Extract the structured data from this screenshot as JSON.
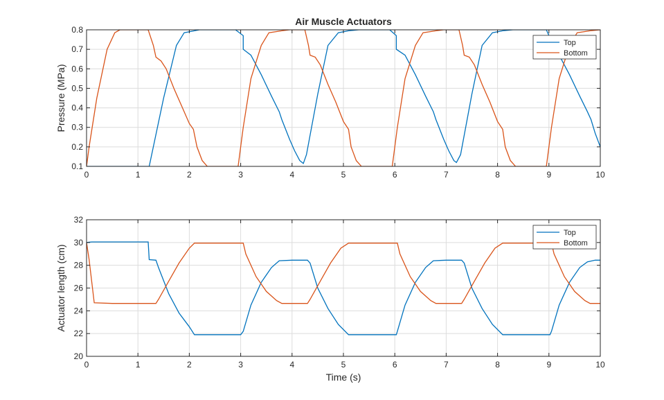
{
  "chart_data": [
    {
      "type": "line",
      "title": "Air Muscle Actuators",
      "xlabel": "",
      "ylabel": "Pressure (MPa)",
      "xlim": [
        0,
        10
      ],
      "ylim": [
        0.1,
        0.8
      ],
      "xticks": [
        "0",
        "1",
        "2",
        "3",
        "4",
        "5",
        "6",
        "7",
        "8",
        "9",
        "10"
      ],
      "yticks": [
        "0.1",
        "0.2",
        "0.3",
        "0.4",
        "0.5",
        "0.6",
        "0.7",
        "0.8"
      ],
      "grid": true,
      "legend": "top-right",
      "series": [
        {
          "name": "Top",
          "color": "#0072BD",
          "points": [
            [
              0,
              0.1
            ],
            [
              1.2,
              0.1
            ],
            [
              1.22,
              0.1
            ],
            [
              1.5,
              0.45
            ],
            [
              1.75,
              0.72
            ],
            [
              1.9,
              0.785
            ],
            [
              2.1,
              0.795
            ],
            [
              2.2,
              0.8
            ],
            [
              2.9,
              0.8
            ],
            [
              3.05,
              0.77
            ],
            [
              3.05,
              0.7
            ],
            [
              3.2,
              0.67
            ],
            [
              3.4,
              0.57
            ],
            [
              3.6,
              0.46
            ],
            [
              3.75,
              0.38
            ],
            [
              3.8,
              0.34
            ],
            [
              3.95,
              0.24
            ],
            [
              4.05,
              0.18
            ],
            [
              4.15,
              0.13
            ],
            [
              4.22,
              0.115
            ],
            [
              4.28,
              0.16
            ],
            [
              4.5,
              0.47
            ],
            [
              4.7,
              0.72
            ],
            [
              4.9,
              0.785
            ],
            [
              5.1,
              0.795
            ],
            [
              5.3,
              0.8
            ],
            [
              5.9,
              0.8
            ],
            [
              6.03,
              0.77
            ],
            [
              6.03,
              0.7
            ],
            [
              6.2,
              0.67
            ],
            [
              6.4,
              0.57
            ],
            [
              6.6,
              0.46
            ],
            [
              6.75,
              0.38
            ],
            [
              6.8,
              0.34
            ],
            [
              6.95,
              0.24
            ],
            [
              7.05,
              0.18
            ],
            [
              7.15,
              0.13
            ],
            [
              7.2,
              0.12
            ],
            [
              7.28,
              0.16
            ],
            [
              7.5,
              0.47
            ],
            [
              7.7,
              0.72
            ],
            [
              7.9,
              0.785
            ],
            [
              8.1,
              0.795
            ],
            [
              8.3,
              0.8
            ],
            [
              8.95,
              0.8
            ],
            [
              9.0,
              0.77
            ],
            [
              9.03,
              0.75
            ],
            [
              9.2,
              0.67
            ],
            [
              9.4,
              0.57
            ],
            [
              9.6,
              0.46
            ],
            [
              9.75,
              0.38
            ],
            [
              9.82,
              0.34
            ],
            [
              9.9,
              0.27
            ],
            [
              10,
              0.2
            ]
          ]
        },
        {
          "name": "Bottom",
          "color": "#D95319",
          "points": [
            [
              0,
              0.1
            ],
            [
              0.05,
              0.2
            ],
            [
              0.2,
              0.45
            ],
            [
              0.4,
              0.7
            ],
            [
              0.55,
              0.785
            ],
            [
              0.65,
              0.8
            ],
            [
              1.2,
              0.8
            ],
            [
              1.3,
              0.72
            ],
            [
              1.35,
              0.66
            ],
            [
              1.45,
              0.64
            ],
            [
              1.55,
              0.6
            ],
            [
              1.7,
              0.5
            ],
            [
              1.85,
              0.41
            ],
            [
              2.0,
              0.32
            ],
            [
              2.08,
              0.29
            ],
            [
              2.15,
              0.2
            ],
            [
              2.25,
              0.13
            ],
            [
              2.35,
              0.1
            ],
            [
              2.95,
              0.1
            ],
            [
              3.05,
              0.3
            ],
            [
              3.2,
              0.55
            ],
            [
              3.4,
              0.72
            ],
            [
              3.55,
              0.785
            ],
            [
              3.8,
              0.795
            ],
            [
              3.95,
              0.8
            ],
            [
              4.25,
              0.8
            ],
            [
              4.32,
              0.72
            ],
            [
              4.35,
              0.67
            ],
            [
              4.45,
              0.66
            ],
            [
              4.55,
              0.62
            ],
            [
              4.7,
              0.52
            ],
            [
              4.85,
              0.43
            ],
            [
              5.0,
              0.33
            ],
            [
              5.1,
              0.29
            ],
            [
              5.15,
              0.2
            ],
            [
              5.25,
              0.13
            ],
            [
              5.35,
              0.1
            ],
            [
              5.95,
              0.1
            ],
            [
              6.05,
              0.3
            ],
            [
              6.2,
              0.55
            ],
            [
              6.4,
              0.72
            ],
            [
              6.55,
              0.785
            ],
            [
              6.8,
              0.795
            ],
            [
              6.95,
              0.8
            ],
            [
              7.25,
              0.8
            ],
            [
              7.32,
              0.72
            ],
            [
              7.35,
              0.67
            ],
            [
              7.45,
              0.66
            ],
            [
              7.55,
              0.62
            ],
            [
              7.7,
              0.52
            ],
            [
              7.85,
              0.43
            ],
            [
              8.0,
              0.33
            ],
            [
              8.1,
              0.29
            ],
            [
              8.15,
              0.2
            ],
            [
              8.25,
              0.13
            ],
            [
              8.35,
              0.1
            ],
            [
              8.95,
              0.1
            ],
            [
              9.05,
              0.3
            ],
            [
              9.2,
              0.55
            ],
            [
              9.4,
              0.72
            ],
            [
              9.55,
              0.785
            ],
            [
              9.8,
              0.795
            ],
            [
              10,
              0.8
            ]
          ]
        }
      ]
    },
    {
      "type": "line",
      "title": "",
      "xlabel": "Time (s)",
      "ylabel": "Actuator length (cm)",
      "xlim": [
        0,
        10
      ],
      "ylim": [
        20,
        32
      ],
      "xticks": [
        "0",
        "1",
        "2",
        "3",
        "4",
        "5",
        "6",
        "7",
        "8",
        "9",
        "10"
      ],
      "yticks": [
        "20",
        "22",
        "24",
        "26",
        "28",
        "30",
        "32"
      ],
      "grid": true,
      "legend": "top-right",
      "series": [
        {
          "name": "Top",
          "color": "#0072BD",
          "points": [
            [
              0,
              30.0
            ],
            [
              0.1,
              30.05
            ],
            [
              1.2,
              30.05
            ],
            [
              1.22,
              28.5
            ],
            [
              1.35,
              28.45
            ],
            [
              1.4,
              27.8
            ],
            [
              1.6,
              25.5
            ],
            [
              1.8,
              23.8
            ],
            [
              2.0,
              22.6
            ],
            [
              2.1,
              21.9
            ],
            [
              3.0,
              21.9
            ],
            [
              3.05,
              22.2
            ],
            [
              3.2,
              24.5
            ],
            [
              3.4,
              26.5
            ],
            [
              3.6,
              27.8
            ],
            [
              3.75,
              28.4
            ],
            [
              4.0,
              28.45
            ],
            [
              4.3,
              28.45
            ],
            [
              4.35,
              28.2
            ],
            [
              4.5,
              26.0
            ],
            [
              4.7,
              24.2
            ],
            [
              4.9,
              22.8
            ],
            [
              5.1,
              21.9
            ],
            [
              6.03,
              21.9
            ],
            [
              6.05,
              22.2
            ],
            [
              6.2,
              24.5
            ],
            [
              6.4,
              26.5
            ],
            [
              6.6,
              27.8
            ],
            [
              6.75,
              28.4
            ],
            [
              7.0,
              28.45
            ],
            [
              7.3,
              28.45
            ],
            [
              7.35,
              28.2
            ],
            [
              7.5,
              26.0
            ],
            [
              7.7,
              24.2
            ],
            [
              7.9,
              22.8
            ],
            [
              8.1,
              21.9
            ],
            [
              9.02,
              21.9
            ],
            [
              9.05,
              22.2
            ],
            [
              9.2,
              24.5
            ],
            [
              9.4,
              26.5
            ],
            [
              9.6,
              27.8
            ],
            [
              9.75,
              28.3
            ],
            [
              9.9,
              28.45
            ],
            [
              10,
              28.45
            ]
          ]
        },
        {
          "name": "Bottom",
          "color": "#D95319",
          "points": [
            [
              0,
              30.0
            ],
            [
              0.05,
              28.5
            ],
            [
              0.15,
              24.7
            ],
            [
              0.5,
              24.65
            ],
            [
              1.35,
              24.65
            ],
            [
              1.4,
              25.0
            ],
            [
              1.6,
              26.6
            ],
            [
              1.8,
              28.2
            ],
            [
              2.0,
              29.5
            ],
            [
              2.1,
              29.95
            ],
            [
              3.05,
              29.95
            ],
            [
              3.1,
              29.0
            ],
            [
              3.3,
              27.0
            ],
            [
              3.5,
              25.7
            ],
            [
              3.7,
              24.9
            ],
            [
              3.8,
              24.65
            ],
            [
              4.3,
              24.65
            ],
            [
              4.35,
              25.0
            ],
            [
              4.55,
              26.6
            ],
            [
              4.75,
              28.2
            ],
            [
              4.95,
              29.5
            ],
            [
              5.1,
              29.95
            ],
            [
              6.05,
              29.95
            ],
            [
              6.1,
              29.0
            ],
            [
              6.3,
              27.0
            ],
            [
              6.5,
              25.7
            ],
            [
              6.7,
              24.9
            ],
            [
              6.8,
              24.65
            ],
            [
              7.3,
              24.65
            ],
            [
              7.35,
              25.0
            ],
            [
              7.55,
              26.6
            ],
            [
              7.75,
              28.2
            ],
            [
              7.95,
              29.5
            ],
            [
              8.1,
              29.95
            ],
            [
              9.05,
              29.95
            ],
            [
              9.1,
              29.0
            ],
            [
              9.3,
              27.0
            ],
            [
              9.5,
              25.7
            ],
            [
              9.7,
              24.9
            ],
            [
              9.8,
              24.65
            ],
            [
              10,
              24.65
            ]
          ]
        }
      ]
    }
  ]
}
